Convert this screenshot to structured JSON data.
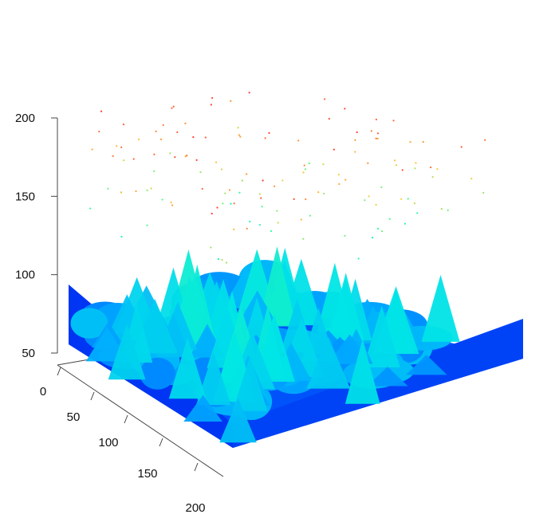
{
  "chart_data": {
    "type": "scatter",
    "subtype": "3d-point-cloud",
    "title": "",
    "xlabel": "",
    "ylabel": "",
    "zlabel": "",
    "x_ticks": [
      "0",
      "50",
      "100",
      "150",
      "200"
    ],
    "z_ticks": [
      "50",
      "100",
      "150",
      "200"
    ],
    "xlim": [
      0,
      200
    ],
    "ylim": [
      0,
      200
    ],
    "zlim": [
      50,
      200
    ],
    "grid": false,
    "legend": "none",
    "color_scale": [
      "#0022ee",
      "#0066ff",
      "#00aaff",
      "#00e6e6",
      "#33ff99",
      "#ffcc33",
      "#ff3333"
    ],
    "series": [
      {
        "description_values": {
          "canopy_height_range": [
            50,
            115
          ],
          "outlier_height_range": [
            118,
            202
          ]
        }
      }
    ]
  }
}
